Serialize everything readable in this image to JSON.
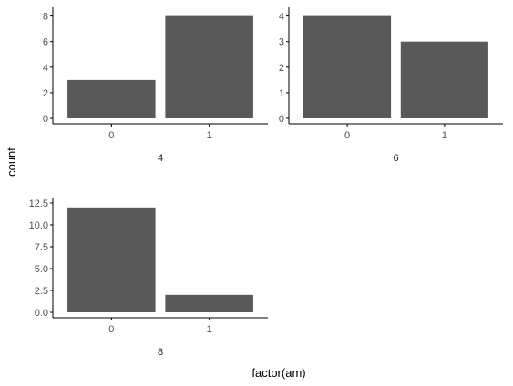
{
  "chart_data": {
    "type": "bar",
    "xlabel": "factor(am)",
    "ylabel": "count",
    "colors": {
      "bar": "#595959",
      "axis": "#000000",
      "tick_text": "#4d4d4d",
      "background": "#ffffff"
    },
    "grid": false,
    "panels": [
      {
        "label": "4",
        "categories": [
          "0",
          "1"
        ],
        "values": [
          3,
          8
        ],
        "ylim": [
          0,
          8.4
        ],
        "yticks": [
          0,
          2,
          4,
          6,
          8
        ],
        "ytick_labels": [
          "0",
          "2",
          "4",
          "6",
          "8"
        ]
      },
      {
        "label": "6",
        "categories": [
          "0",
          "1"
        ],
        "values": [
          4,
          3
        ],
        "ylim": [
          0,
          4.2
        ],
        "yticks": [
          0,
          1,
          2,
          3,
          4
        ],
        "ytick_labels": [
          "0",
          "1",
          "2",
          "3",
          "4"
        ]
      },
      {
        "label": "8",
        "categories": [
          "0",
          "1"
        ],
        "values": [
          12,
          2
        ],
        "ylim": [
          0,
          12.6
        ],
        "yticks": [
          0,
          2.5,
          5,
          7.5,
          10,
          12.5
        ],
        "ytick_labels": [
          "0.0",
          "2.5",
          "5.0",
          "7.5",
          "10.0",
          "12.5"
        ]
      }
    ]
  }
}
